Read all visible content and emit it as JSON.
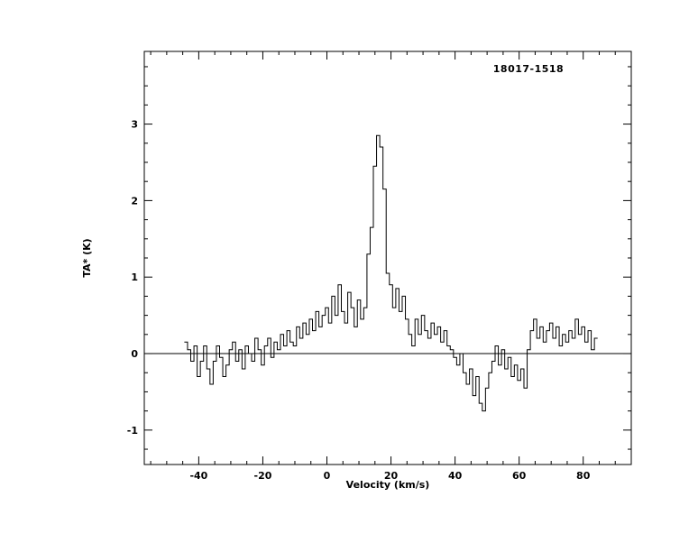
{
  "chart_data": {
    "type": "line",
    "style": "histogram-step",
    "title": "18017-1518",
    "xlabel": "Velocity (km/s)",
    "ylabel": "TA* (K)",
    "xlim": [
      -57,
      95
    ],
    "ylim": [
      -1.45,
      3.95
    ],
    "x_ticks": [
      -40,
      -20,
      0,
      20,
      40,
      60,
      80
    ],
    "y_ticks": [
      -1,
      0,
      1,
      2,
      3
    ],
    "x_minor_step": 5,
    "y_minor_step": 0.25,
    "baseline": 0,
    "grid": false,
    "legend": "none",
    "line_color": "#000000",
    "background": "#ffffff",
    "x": [
      -44,
      -43,
      -42,
      -41,
      -40,
      -39,
      -38,
      -37,
      -36,
      -35,
      -34,
      -33,
      -32,
      -31,
      -30,
      -29,
      -28,
      -27,
      -26,
      -25,
      -24,
      -23,
      -22,
      -21,
      -20,
      -19,
      -18,
      -17,
      -16,
      -15,
      -14,
      -13,
      -12,
      -11,
      -10,
      -9,
      -8,
      -7,
      -6,
      -5,
      -4,
      -3,
      -2,
      -1,
      0,
      1,
      2,
      3,
      4,
      5,
      6,
      7,
      8,
      9,
      10,
      11,
      12,
      13,
      14,
      15,
      16,
      17,
      18,
      19,
      20,
      21,
      22,
      23,
      24,
      25,
      26,
      27,
      28,
      29,
      30,
      31,
      32,
      33,
      34,
      35,
      36,
      37,
      38,
      39,
      40,
      41,
      42,
      43,
      44,
      45,
      46,
      47,
      48,
      49,
      50,
      51,
      52,
      53,
      54,
      55,
      56,
      57,
      58,
      59,
      60,
      61,
      62,
      63,
      64,
      65,
      66,
      67,
      68,
      69,
      70,
      71,
      72,
      73,
      74,
      75,
      76,
      77,
      78,
      79,
      80,
      81,
      82,
      83,
      84
    ],
    "y": [
      0.15,
      0.05,
      -0.1,
      0.1,
      -0.3,
      -0.1,
      0.1,
      -0.2,
      -0.4,
      -0.1,
      0.1,
      -0.05,
      -0.3,
      -0.15,
      0.05,
      0.15,
      -0.1,
      0.05,
      -0.2,
      0.1,
      0.0,
      -0.1,
      0.2,
      0.05,
      -0.15,
      0.1,
      0.2,
      -0.05,
      0.15,
      0.05,
      0.25,
      0.1,
      0.3,
      0.15,
      0.1,
      0.35,
      0.2,
      0.4,
      0.25,
      0.45,
      0.3,
      0.55,
      0.35,
      0.5,
      0.6,
      0.4,
      0.75,
      0.5,
      0.9,
      0.55,
      0.4,
      0.8,
      0.6,
      0.35,
      0.7,
      0.45,
      0.6,
      1.3,
      1.65,
      2.45,
      2.85,
      2.7,
      2.15,
      1.05,
      0.9,
      0.6,
      0.85,
      0.55,
      0.75,
      0.45,
      0.25,
      0.1,
      0.45,
      0.25,
      0.5,
      0.3,
      0.2,
      0.4,
      0.25,
      0.35,
      0.15,
      0.3,
      0.1,
      0.05,
      -0.05,
      -0.15,
      0.0,
      -0.25,
      -0.4,
      -0.2,
      -0.55,
      -0.3,
      -0.65,
      -0.75,
      -0.45,
      -0.25,
      -0.1,
      0.1,
      -0.15,
      0.05,
      -0.2,
      -0.05,
      -0.3,
      -0.15,
      -0.35,
      -0.2,
      -0.45,
      0.05,
      0.3,
      0.45,
      0.2,
      0.35,
      0.15,
      0.3,
      0.4,
      0.2,
      0.35,
      0.1,
      0.25,
      0.15,
      0.3,
      0.2,
      0.45,
      0.25,
      0.35,
      0.15,
      0.3,
      0.05,
      0.2
    ]
  }
}
